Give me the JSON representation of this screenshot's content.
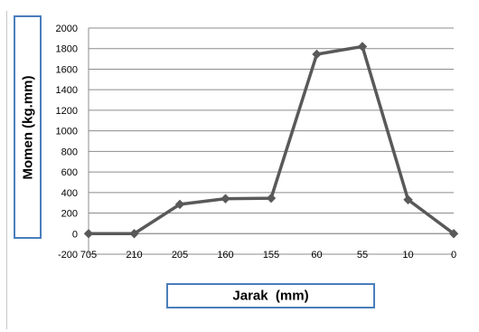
{
  "chart_data": {
    "type": "line",
    "categories": [
      "705",
      "210",
      "205",
      "160",
      "155",
      "60",
      "55",
      "10",
      "0"
    ],
    "values": [
      0,
      0,
      285,
      340,
      345,
      1745,
      1820,
      330,
      0
    ],
    "xlabel": "Jarak  (mm)",
    "ylabel": "Momen  (kg.mm)",
    "ylim": [
      -200,
      2000
    ],
    "yticks": [
      -200,
      0,
      200,
      400,
      600,
      800,
      1000,
      1200,
      1400,
      1600,
      1800,
      2000
    ],
    "grid": true,
    "series_color": "#595959",
    "marker": "diamond"
  }
}
